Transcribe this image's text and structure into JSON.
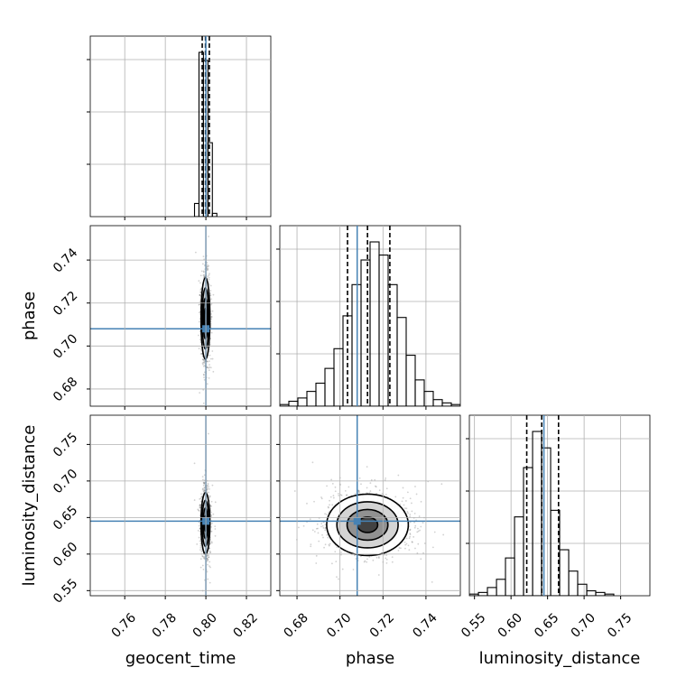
{
  "chart_data": {
    "type": "corner",
    "parameters": [
      "geocent_time",
      "phase",
      "luminosity_distance"
    ],
    "truth": {
      "geocent_time": 0.8,
      "phase": 0.708,
      "luminosity_distance": 0.645
    },
    "grid": true,
    "axis_labels": {
      "x": [
        "geocent_time",
        "phase",
        "luminosity_distance"
      ],
      "y": [
        "phase",
        "luminosity_distance"
      ]
    },
    "ranges": {
      "geocent_time": [
        0.743,
        0.832
      ],
      "phase": [
        0.672,
        0.756
      ],
      "luminosity_distance": [
        0.543,
        0.79
      ]
    },
    "ticks": {
      "geocent_time": [
        0.76,
        0.78,
        0.8,
        0.82
      ],
      "phase_y": [
        0.68,
        0.7,
        0.72,
        0.74
      ],
      "phase_x": [
        0.68,
        0.7,
        0.72,
        0.74
      ],
      "luminosity_distance_y": [
        0.55,
        0.6,
        0.65,
        0.7,
        0.75
      ],
      "luminosity_distance_x": [
        0.55,
        0.6,
        0.65,
        0.7,
        0.75
      ]
    },
    "tick_labels": {
      "geocent_time": [
        "0.76",
        "0.78",
        "0.80",
        "0.82"
      ],
      "phase_y": [
        "0.68",
        "0.70",
        "0.72",
        "0.74"
      ],
      "phase_x": [
        "0.68",
        "0.70",
        "0.72",
        "0.74"
      ],
      "luminosity_distance_y": [
        "0.55",
        "0.60",
        "0.65",
        "0.70",
        "0.75"
      ],
      "luminosity_distance_x": [
        "0.55",
        "0.60",
        "0.65",
        "0.70",
        "0.75"
      ]
    },
    "histograms": {
      "geocent_time": {
        "bin_edges": [
          0.7944,
          0.7966,
          0.7988,
          0.801,
          0.8032,
          0.8054
        ],
        "counts": [
          0.08,
          1.0,
          0.95,
          0.45,
          0.02
        ],
        "quantiles": [
          0.7982,
          0.7998,
          0.8017
        ]
      },
      "phase": {
        "bin_edges": [
          0.672,
          0.6762,
          0.6804,
          0.6846,
          0.6888,
          0.693,
          0.6972,
          0.7014,
          0.7056,
          0.7098,
          0.714,
          0.7182,
          0.7224,
          0.7266,
          0.7308,
          0.735,
          0.7392,
          0.7434,
          0.7476,
          0.7518,
          0.756
        ],
        "counts": [
          0.01,
          0.03,
          0.05,
          0.09,
          0.14,
          0.23,
          0.35,
          0.55,
          0.74,
          0.89,
          1.0,
          0.92,
          0.74,
          0.54,
          0.31,
          0.16,
          0.09,
          0.04,
          0.02,
          0.01
        ],
        "quantiles": [
          0.7035,
          0.7128,
          0.7232
        ]
      },
      "luminosity_distance": {
        "bin_edges": [
          0.543,
          0.5554,
          0.5677,
          0.5801,
          0.5924,
          0.6048,
          0.6171,
          0.6295,
          0.6418,
          0.6542,
          0.6665,
          0.6789,
          0.6912,
          0.7036,
          0.7159,
          0.7283,
          0.7406,
          0.753,
          0.7653,
          0.7777,
          0.79
        ],
        "counts": [
          0.01,
          0.02,
          0.05,
          0.1,
          0.23,
          0.48,
          0.78,
          1.0,
          0.9,
          0.52,
          0.28,
          0.15,
          0.07,
          0.03,
          0.02,
          0.01,
          0.0,
          0.0,
          0.0,
          0.0
        ],
        "quantiles": [
          0.6215,
          0.642,
          0.665
        ]
      }
    },
    "scatter_2d": [
      {
        "x": "geocent_time",
        "y": "phase",
        "x_mean": 0.7998,
        "x_sd": 0.0011,
        "y_mean": 0.7128,
        "y_sd": 0.0095,
        "corr": 0.0
      },
      {
        "x": "geocent_time",
        "y": "luminosity_distance",
        "x_mean": 0.7998,
        "x_sd": 0.0011,
        "y_mean": 0.642,
        "y_sd": 0.021,
        "corr": 0.0
      },
      {
        "x": "phase",
        "y": "luminosity_distance",
        "x_mean": 0.7128,
        "x_sd": 0.0095,
        "y_mean": 0.64,
        "y_sd": 0.021,
        "corr": 0.0
      }
    ],
    "contour_sigma_levels": [
      0.5,
      1.0,
      1.5,
      2.0
    ],
    "colors": {
      "truth": "#4682b4",
      "hist": "#000000",
      "contour": "#000000",
      "grid": "#b0b0b0",
      "points": "#000000"
    }
  }
}
